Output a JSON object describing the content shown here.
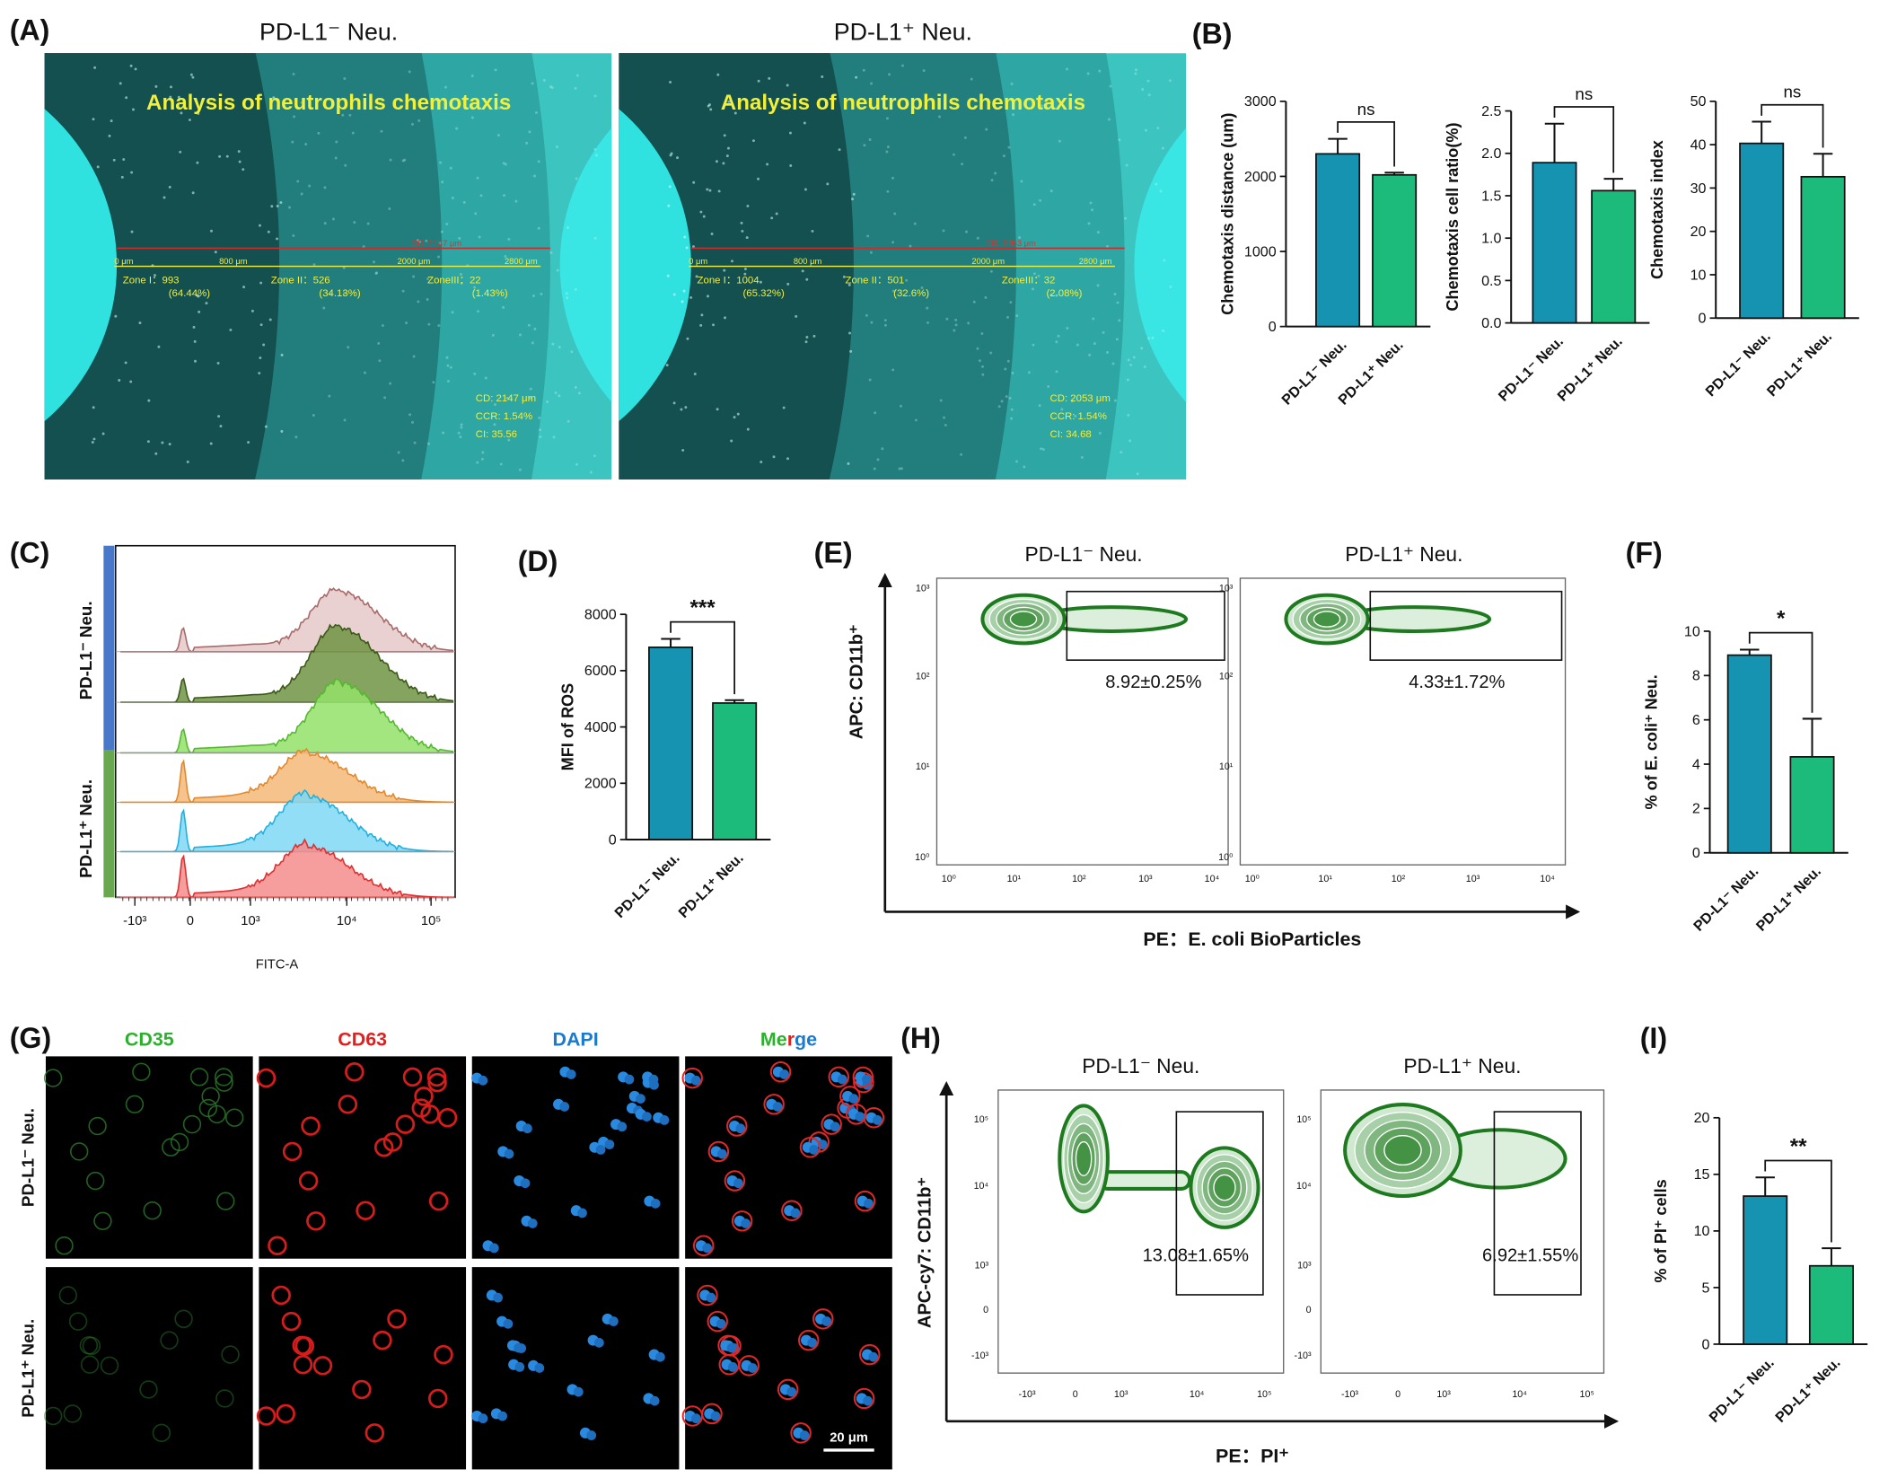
{
  "panel_labels": [
    "(A)",
    "(B)",
    "(C)",
    "(D)",
    "(E)",
    "(F)",
    "(G)",
    "(H)",
    "(I)"
  ],
  "panel_a": {
    "images": [
      {
        "title": "PD-L1⁻ Neu.",
        "header": "Analysis of neutrophils chemotaxis",
        "cd_label": "CD: 2147 μm",
        "ruler": [
          "0 μm",
          "800 μm",
          "2000 μm",
          "2800 μm"
        ],
        "zones": [
          {
            "name": "Zone I：993",
            "percent": "(64.44%)"
          },
          {
            "name": "Zone II：526",
            "percent": "(34.13%)"
          },
          {
            "name": "ZoneIII：22",
            "percent": "(1.43%)"
          }
        ],
        "stats": [
          "CD:  2147 μm",
          "CCR:  1.54%",
          "CI:  35.56"
        ]
      },
      {
        "title": "PD-L1⁺ Neu.",
        "header": "Analysis of neutrophils chemotaxis",
        "cd_label": "CD: 2053 μm",
        "ruler": [
          "0 μm",
          "800 μm",
          "2000 μm",
          "2800 μm"
        ],
        "zones": [
          {
            "name": "Zone I：1004",
            "percent": "(65.32%)"
          },
          {
            "name": "Zone II：501",
            "percent": "(32.6%)"
          },
          {
            "name": "ZoneIII：32",
            "percent": "(2.08%)"
          }
        ],
        "stats": [
          "CD:  2053 μm",
          "CCR:  1.54%",
          "CI:  34.68"
        ]
      }
    ]
  },
  "chart_data": [
    {
      "type": "bar",
      "ylabel": "Chemotaxis distance (um)",
      "categories": [
        "PD-L1⁻ Neu.",
        "PD-L1⁺ Neu."
      ],
      "values": [
        2300,
        2020
      ],
      "errors": [
        200,
        30
      ],
      "colors": [
        "#1593b1",
        "#1cbb7b"
      ],
      "ylim": [
        0,
        3000
      ],
      "yticks": [
        0,
        1000,
        2000,
        3000
      ],
      "annotation": "ns"
    },
    {
      "type": "bar",
      "ylabel": "Chemotaxis cell ratio(%)",
      "categories": [
        "PD-L1⁻ Neu.",
        "PD-L1⁺ Neu."
      ],
      "values": [
        1.89,
        1.56
      ],
      "errors": [
        0.46,
        0.14
      ],
      "colors": [
        "#1593b1",
        "#1cbb7b"
      ],
      "ylim": [
        0,
        2.5
      ],
      "yticks": [
        {
          "value": 0,
          "label": "0.0"
        },
        0.5,
        {
          "value": 1,
          "label": "1.0"
        },
        1.5,
        {
          "value": 2,
          "label": "2.0"
        },
        2.5
      ],
      "annotation": "ns"
    },
    {
      "type": "bar",
      "ylabel": "Chemotaxis index",
      "categories": [
        "PD-L1⁻ Neu.",
        "PD-L1⁺ Neu."
      ],
      "values": [
        40.3,
        32.6
      ],
      "errors": [
        5,
        5.3
      ],
      "colors": [
        "#1593b1",
        "#1cbb7b"
      ],
      "ylim": [
        0,
        50
      ],
      "yticks": [
        0,
        10,
        20,
        30,
        40,
        50
      ],
      "annotation": "ns"
    },
    {
      "type": "bar",
      "ylabel": "MFI of ROS",
      "categories": [
        "PD-L1⁻ Neu.",
        "PD-L1⁺ Neu."
      ],
      "values": [
        6830,
        4850
      ],
      "errors": [
        300,
        100
      ],
      "colors": [
        "#1593b1",
        "#1cbb7b"
      ],
      "ylim": [
        0,
        8000
      ],
      "yticks": [
        0,
        2000,
        4000,
        6000,
        8000
      ],
      "annotation": "***"
    },
    {
      "type": "bar",
      "ylabel": "% of E. coli⁺ Neu.",
      "categories": [
        "PD-L1⁻ Neu.",
        "PD-L1⁺ Neu."
      ],
      "values": [
        8.92,
        4.33
      ],
      "errors": [
        0.25,
        1.72
      ],
      "colors": [
        "#1593b1",
        "#1cbb7b"
      ],
      "ylim": [
        0,
        10
      ],
      "yticks": [
        0,
        2,
        4,
        6,
        8,
        10
      ],
      "annotation": "*"
    },
    {
      "type": "bar",
      "ylabel": "% of PI⁺ cells",
      "categories": [
        "PD-L1⁻ Neu.",
        "PD-L1⁺ Neu."
      ],
      "values": [
        13.08,
        6.92
      ],
      "errors": [
        1.65,
        1.55
      ],
      "colors": [
        "#1593b1",
        "#1cbb7b"
      ],
      "ylim": [
        0,
        20
      ],
      "yticks": [
        0,
        5,
        10,
        15,
        20
      ],
      "annotation": "**"
    }
  ],
  "panel_c": {
    "groups": [
      "PD-L1⁻ Neu.",
      "PD-L1⁺ Neu."
    ],
    "xticks": [
      "-10³",
      "0",
      "10³",
      "10⁴",
      "10⁵"
    ],
    "xlabel": "FITC-A"
  },
  "panel_e": {
    "titles": [
      "PD-L1⁻ Neu.",
      "PD-L1⁺ Neu."
    ],
    "ylabel": "APC: CD11b⁺",
    "xlabel": "PE：E. coli BioParticles",
    "gates": [
      "8.92±0.25%",
      "4.33±1.72%"
    ],
    "xticks": [
      "10⁰",
      "10¹",
      "10²",
      "10³",
      "10⁴"
    ],
    "yticks": [
      "10³",
      "10²",
      "10¹",
      "10⁰"
    ]
  },
  "panel_g": {
    "columns": [
      [
        "CD35"
      ],
      [
        "CD63"
      ],
      [
        "DAPI"
      ],
      [
        "Me",
        "r",
        "ge"
      ]
    ],
    "rows": [
      "PD-L1⁻ Neu.",
      "PD-L1⁺ Neu."
    ],
    "scale_bar": "20 μm"
  },
  "panel_h": {
    "titles": [
      "PD-L1⁻ Neu.",
      "PD-L1⁺ Neu."
    ],
    "ylabel": "APC-cy7: CD11b⁺",
    "xlabel": "PE：PI⁺",
    "gates": [
      "13.08±1.65%",
      "6.92±1.55%"
    ],
    "xticks": [
      "-10³",
      "0",
      "10³",
      "10⁴",
      "10⁵"
    ],
    "yticks": [
      "10⁵",
      "10⁴",
      "10³",
      "0",
      "-10³"
    ]
  }
}
